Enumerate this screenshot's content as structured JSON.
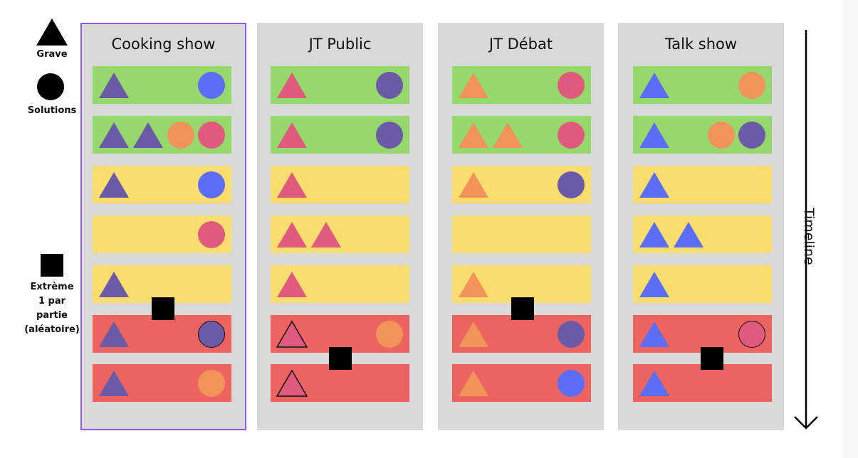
{
  "legend": {
    "grave_label": "Grave",
    "solutions_label": "Solutions",
    "extreme_lines": [
      "Extrème",
      "1 par",
      "partie",
      "(aléatoire)"
    ]
  },
  "timeline_label": "Timeline",
  "colors": {
    "purple": "#6b5aa6",
    "blue": "#5b6ef5",
    "pink": "#e05a7e",
    "orange": "#f2935a",
    "card_green": "#95d86b",
    "card_yellow": "#fadd6f",
    "card_red": "#ec6360",
    "selection": "#8a5cf5"
  },
  "columns": [
    {
      "title": "Cooking show",
      "selected": true,
      "cards": [
        {
          "color": "green",
          "triangles": [
            {
              "c": "purple"
            }
          ],
          "circles": [
            {
              "c": "blue"
            }
          ]
        },
        {
          "color": "green",
          "triangles": [
            {
              "c": "purple"
            },
            {
              "c": "purple"
            }
          ],
          "circles": [
            {
              "c": "orange"
            },
            {
              "c": "pink"
            }
          ]
        },
        {
          "color": "yellow",
          "triangles": [
            {
              "c": "purple"
            }
          ],
          "circles": [
            {
              "c": "blue"
            }
          ]
        },
        {
          "color": "yellow",
          "triangles": [],
          "circles": [
            {
              "c": "pink"
            }
          ]
        },
        {
          "color": "yellow",
          "triangles": [
            {
              "c": "purple"
            }
          ],
          "circles": []
        },
        {
          "color": "red",
          "triangles": [
            {
              "c": "purple"
            }
          ],
          "circles": [
            {
              "c": "purple",
              "outline": true
            }
          ]
        },
        {
          "color": "red",
          "triangles": [
            {
              "c": "purple"
            }
          ],
          "circles": [
            {
              "c": "orange"
            }
          ]
        }
      ]
    },
    {
      "title": "JT Public",
      "selected": false,
      "cards": [
        {
          "color": "green",
          "triangles": [
            {
              "c": "pink"
            }
          ],
          "circles": [
            {
              "c": "purple"
            }
          ]
        },
        {
          "color": "green",
          "triangles": [
            {
              "c": "pink"
            }
          ],
          "circles": [
            {
              "c": "purple"
            }
          ]
        },
        {
          "color": "yellow",
          "triangles": [
            {
              "c": "pink"
            }
          ],
          "circles": []
        },
        {
          "color": "yellow",
          "triangles": [
            {
              "c": "pink"
            },
            {
              "c": "pink"
            }
          ],
          "circles": []
        },
        {
          "color": "yellow",
          "triangles": [
            {
              "c": "pink"
            }
          ],
          "circles": []
        },
        {
          "color": "red",
          "triangles": [
            {
              "c": "pink",
              "outline": true
            }
          ],
          "circles": [
            {
              "c": "orange"
            }
          ]
        },
        {
          "color": "red",
          "triangles": [
            {
              "c": "pink",
              "outline": true
            }
          ],
          "circles": []
        }
      ]
    },
    {
      "title": "JT Débat",
      "selected": false,
      "cards": [
        {
          "color": "green",
          "triangles": [
            {
              "c": "orange"
            }
          ],
          "circles": [
            {
              "c": "pink"
            }
          ]
        },
        {
          "color": "green",
          "triangles": [
            {
              "c": "orange"
            },
            {
              "c": "orange"
            }
          ],
          "circles": [
            {
              "c": "pink"
            }
          ]
        },
        {
          "color": "yellow",
          "triangles": [
            {
              "c": "orange"
            }
          ],
          "circles": [
            {
              "c": "purple"
            }
          ]
        },
        {
          "color": "yellow",
          "triangles": [],
          "circles": []
        },
        {
          "color": "yellow",
          "triangles": [
            {
              "c": "orange"
            }
          ],
          "circles": []
        },
        {
          "color": "red",
          "triangles": [
            {
              "c": "orange"
            }
          ],
          "circles": [
            {
              "c": "purple"
            }
          ]
        },
        {
          "color": "red",
          "triangles": [
            {
              "c": "orange"
            }
          ],
          "circles": [
            {
              "c": "blue"
            }
          ]
        }
      ]
    },
    {
      "title": "Talk show",
      "selected": false,
      "cards": [
        {
          "color": "green",
          "triangles": [
            {
              "c": "blue"
            }
          ],
          "circles": [
            {
              "c": "orange"
            }
          ]
        },
        {
          "color": "green",
          "triangles": [
            {
              "c": "blue"
            }
          ],
          "circles": [
            {
              "c": "orange"
            },
            {
              "c": "purple"
            }
          ]
        },
        {
          "color": "yellow",
          "triangles": [
            {
              "c": "blue"
            }
          ],
          "circles": []
        },
        {
          "color": "yellow",
          "triangles": [
            {
              "c": "blue"
            },
            {
              "c": "blue"
            }
          ],
          "circles": []
        },
        {
          "color": "yellow",
          "triangles": [
            {
              "c": "blue"
            }
          ],
          "circles": []
        },
        {
          "color": "red",
          "triangles": [
            {
              "c": "blue"
            }
          ],
          "circles": [
            {
              "c": "pink",
              "outline": true
            }
          ]
        },
        {
          "color": "red",
          "triangles": [
            {
              "c": "blue"
            }
          ],
          "circles": []
        }
      ]
    }
  ]
}
